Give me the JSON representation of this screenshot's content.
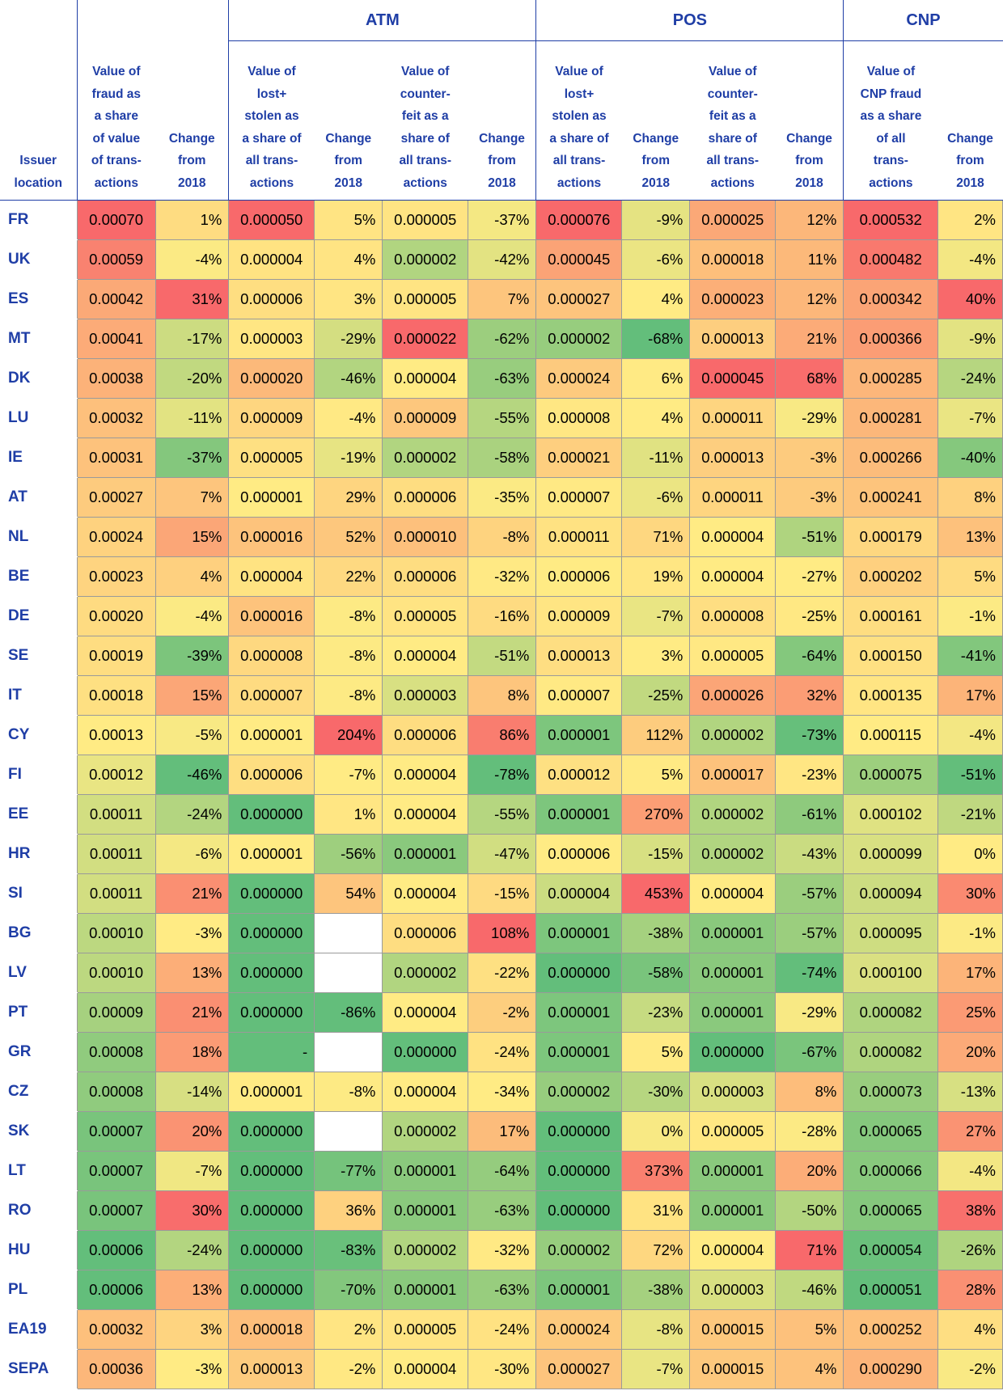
{
  "chart_data": {
    "type": "table",
    "group_headers": [
      "ATM",
      "POS",
      "CNP"
    ],
    "column_headers": [
      "Issuer\nlocation",
      "Value of\nfraud as\na share\nof value\nof trans-\nactions",
      "Change\nfrom\n2018",
      "Value of\nlost+\nstolen as\na share of\nall trans-\nactions",
      "Change\nfrom\n2018",
      "Value of\ncounter-\nfeit as a\nshare of\nall trans-\nactions",
      "Change\nfrom\n2018",
      "Value of\nlost+\nstolen as\na share of\nall trans-\nactions",
      "Change\nfrom\n2018",
      "Value of\ncounter-\nfeit as a\nshare of\nall trans-\nactions",
      "Change\nfrom\n2018",
      "Value of\nCNP fraud\nas a share\nof all\ntrans-\nactions",
      "Change\nfrom\n2018"
    ],
    "rows": [
      {
        "loc": "FR",
        "cells": [
          "0.00070",
          "1%",
          "0.000050",
          "5%",
          "0.000005",
          "-37%",
          "0.000076",
          "-9%",
          "0.000025",
          "12%",
          "0.000532",
          "2%"
        ]
      },
      {
        "loc": "UK",
        "cells": [
          "0.00059",
          "-4%",
          "0.000004",
          "4%",
          "0.000002",
          "-42%",
          "0.000045",
          "-6%",
          "0.000018",
          "11%",
          "0.000482",
          "-4%"
        ]
      },
      {
        "loc": "ES",
        "cells": [
          "0.00042",
          "31%",
          "0.000006",
          "3%",
          "0.000005",
          "7%",
          "0.000027",
          "4%",
          "0.000023",
          "12%",
          "0.000342",
          "40%"
        ]
      },
      {
        "loc": "MT",
        "cells": [
          "0.00041",
          "-17%",
          "0.000003",
          "-29%",
          "0.000022",
          "-62%",
          "0.000002",
          "-68%",
          "0.000013",
          "21%",
          "0.000366",
          "-9%"
        ]
      },
      {
        "loc": "DK",
        "cells": [
          "0.00038",
          "-20%",
          "0.000020",
          "-46%",
          "0.000004",
          "-63%",
          "0.000024",
          "6%",
          "0.000045",
          "68%",
          "0.000285",
          "-24%"
        ]
      },
      {
        "loc": "LU",
        "cells": [
          "0.00032",
          "-11%",
          "0.000009",
          "-4%",
          "0.000009",
          "-55%",
          "0.000008",
          "4%",
          "0.000011",
          "-29%",
          "0.000281",
          "-7%"
        ]
      },
      {
        "loc": "IE",
        "cells": [
          "0.00031",
          "-37%",
          "0.000005",
          "-19%",
          "0.000002",
          "-58%",
          "0.000021",
          "-11%",
          "0.000013",
          "-3%",
          "0.000266",
          "-40%"
        ]
      },
      {
        "loc": "AT",
        "cells": [
          "0.00027",
          "7%",
          "0.000001",
          "29%",
          "0.000006",
          "-35%",
          "0.000007",
          "-6%",
          "0.000011",
          "-3%",
          "0.000241",
          "8%"
        ]
      },
      {
        "loc": "NL",
        "cells": [
          "0.00024",
          "15%",
          "0.000016",
          "52%",
          "0.000010",
          "-8%",
          "0.000011",
          "71%",
          "0.000004",
          "-51%",
          "0.000179",
          "13%"
        ]
      },
      {
        "loc": "BE",
        "cells": [
          "0.00023",
          "4%",
          "0.000004",
          "22%",
          "0.000006",
          "-32%",
          "0.000006",
          "19%",
          "0.000004",
          "-27%",
          "0.000202",
          "5%"
        ]
      },
      {
        "loc": "DE",
        "cells": [
          "0.00020",
          "-4%",
          "0.000016",
          "-8%",
          "0.000005",
          "-16%",
          "0.000009",
          "-7%",
          "0.000008",
          "-25%",
          "0.000161",
          "-1%"
        ]
      },
      {
        "loc": "SE",
        "cells": [
          "0.00019",
          "-39%",
          "0.000008",
          "-8%",
          "0.000004",
          "-51%",
          "0.000013",
          "3%",
          "0.000005",
          "-64%",
          "0.000150",
          "-41%"
        ]
      },
      {
        "loc": "IT",
        "cells": [
          "0.00018",
          "15%",
          "0.000007",
          "-8%",
          "0.000003",
          "8%",
          "0.000007",
          "-25%",
          "0.000026",
          "32%",
          "0.000135",
          "17%"
        ]
      },
      {
        "loc": "CY",
        "cells": [
          "0.00013",
          "-5%",
          "0.000001",
          "204%",
          "0.000006",
          "86%",
          "0.000001",
          "112%",
          "0.000002",
          "-73%",
          "0.000115",
          "-4%"
        ]
      },
      {
        "loc": "FI",
        "cells": [
          "0.00012",
          "-46%",
          "0.000006",
          "-7%",
          "0.000004",
          "-78%",
          "0.000012",
          "5%",
          "0.000017",
          "-23%",
          "0.000075",
          "-51%"
        ]
      },
      {
        "loc": "EE",
        "cells": [
          "0.00011",
          "-24%",
          "0.000000",
          "1%",
          "0.000004",
          "-55%",
          "0.000001",
          "270%",
          "0.000002",
          "-61%",
          "0.000102",
          "-21%"
        ]
      },
      {
        "loc": "HR",
        "cells": [
          "0.00011",
          "-6%",
          "0.000001",
          "-56%",
          "0.000001",
          "-47%",
          "0.000006",
          "-15%",
          "0.000002",
          "-43%",
          "0.000099",
          "0%"
        ]
      },
      {
        "loc": "SI",
        "cells": [
          "0.00011",
          "21%",
          "0.000000",
          "54%",
          "0.000004",
          "-15%",
          "0.000004",
          "453%",
          "0.000004",
          "-57%",
          "0.000094",
          "30%"
        ]
      },
      {
        "loc": "BG",
        "cells": [
          "0.00010",
          "-3%",
          "0.000000",
          "",
          "0.000006",
          "108%",
          "0.000001",
          "-38%",
          "0.000001",
          "-57%",
          "0.000095",
          "-1%"
        ]
      },
      {
        "loc": "LV",
        "cells": [
          "0.00010",
          "13%",
          "0.000000",
          "",
          "0.000002",
          "-22%",
          "0.000000",
          "-58%",
          "0.000001",
          "-74%",
          "0.000100",
          "17%"
        ]
      },
      {
        "loc": "PT",
        "cells": [
          "0.00009",
          "21%",
          "0.000000",
          "-86%",
          "0.000004",
          "-2%",
          "0.000001",
          "-23%",
          "0.000001",
          "-29%",
          "0.000082",
          "25%"
        ]
      },
      {
        "loc": "GR",
        "cells": [
          "0.00008",
          "18%",
          "-",
          "",
          "0.000000",
          "-24%",
          "0.000001",
          "5%",
          "0.000000",
          "-67%",
          "0.000082",
          "20%"
        ]
      },
      {
        "loc": "CZ",
        "cells": [
          "0.00008",
          "-14%",
          "0.000001",
          "-8%",
          "0.000004",
          "-34%",
          "0.000002",
          "-30%",
          "0.000003",
          "8%",
          "0.000073",
          "-13%"
        ]
      },
      {
        "loc": "SK",
        "cells": [
          "0.00007",
          "20%",
          "0.000000",
          "",
          "0.000002",
          "17%",
          "0.000000",
          "0%",
          "0.000005",
          "-28%",
          "0.000065",
          "27%"
        ]
      },
      {
        "loc": "LT",
        "cells": [
          "0.00007",
          "-7%",
          "0.000000",
          "-77%",
          "0.000001",
          "-64%",
          "0.000000",
          "373%",
          "0.000001",
          "20%",
          "0.000066",
          "-4%"
        ]
      },
      {
        "loc": "RO",
        "cells": [
          "0.00007",
          "30%",
          "0.000000",
          "36%",
          "0.000001",
          "-63%",
          "0.000000",
          "31%",
          "0.000001",
          "-50%",
          "0.000065",
          "38%"
        ]
      },
      {
        "loc": "HU",
        "cells": [
          "0.00006",
          "-24%",
          "0.000000",
          "-83%",
          "0.000002",
          "-32%",
          "0.000002",
          "72%",
          "0.000004",
          "71%",
          "0.000054",
          "-26%"
        ]
      },
      {
        "loc": "PL",
        "cells": [
          "0.00006",
          "13%",
          "0.000000",
          "-70%",
          "0.000001",
          "-63%",
          "0.000001",
          "-38%",
          "0.000003",
          "-46%",
          "0.000051",
          "28%"
        ]
      },
      {
        "loc": "EA19",
        "cells": [
          "0.00032",
          "3%",
          "0.000018",
          "2%",
          "0.000005",
          "-24%",
          "0.000024",
          "-8%",
          "0.000015",
          "5%",
          "0.000252",
          "4%"
        ]
      },
      {
        "loc": "SEPA",
        "cells": [
          "0.00036",
          "-3%",
          "0.000013",
          "-2%",
          "0.000004",
          "-30%",
          "0.000027",
          "-7%",
          "0.000015",
          "4%",
          "0.000290",
          "-2%"
        ]
      }
    ]
  }
}
